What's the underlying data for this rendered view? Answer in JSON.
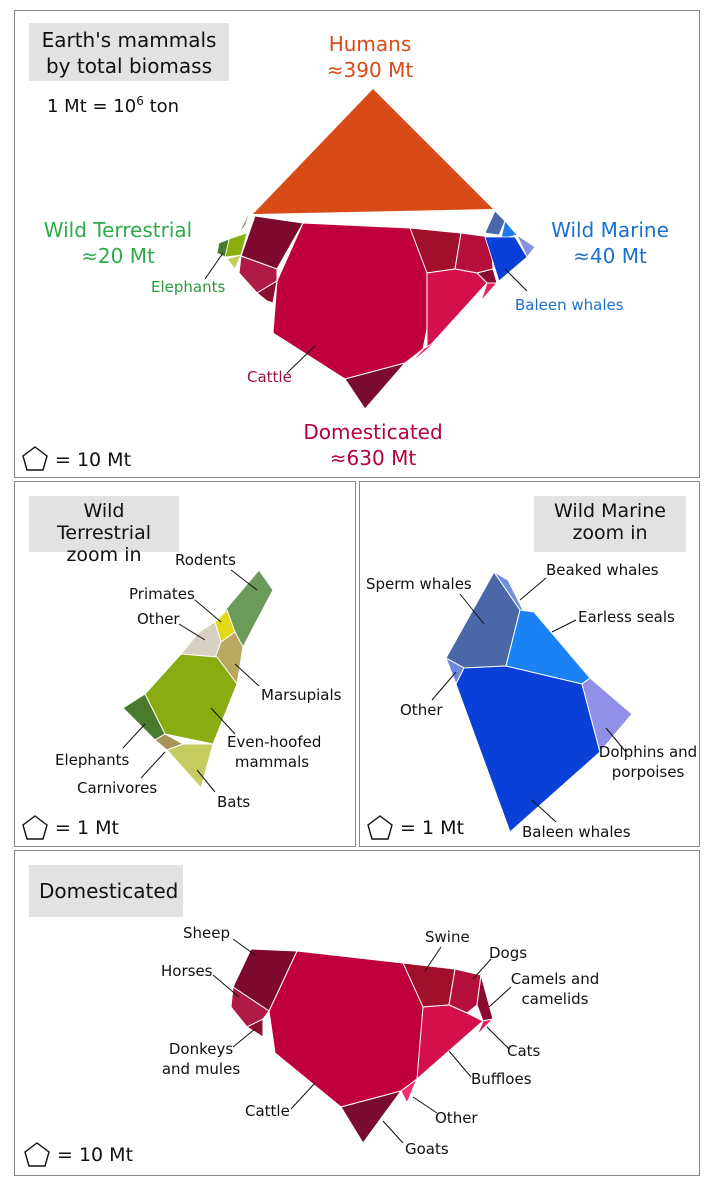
{
  "overview": {
    "title_line1": "Earth's mammals",
    "title_line2": "by total biomass",
    "unit_prefix": "1 Mt = 10",
    "unit_exp": "6",
    "unit_suffix": " ton",
    "humans": {
      "name": "Humans",
      "value": "≈390 Mt"
    },
    "wild_terrestrial": {
      "name": "Wild Terrestrial",
      "value": "≈20 Mt"
    },
    "wild_marine": {
      "name": "Wild Marine",
      "value": "≈40 Mt"
    },
    "domesticated": {
      "name": "Domesticated",
      "value": "≈630 Mt"
    },
    "label_elephants": "Elephants",
    "label_baleen": "Baleen whales",
    "label_cattle": "Cattle",
    "legend": "= 10 Mt"
  },
  "terrestrial_zoom": {
    "title_line1": "Wild Terrestrial",
    "title_line2": "zoom in",
    "labels": {
      "rodents": "Rodents",
      "primates": "Primates",
      "other": "Other",
      "marsupials": "Marsupials",
      "even_hoofed_1": "Even-hoofed",
      "even_hoofed_2": "mammals",
      "elephants": "Elephants",
      "carnivores": "Carnivores",
      "bats": "Bats"
    },
    "legend": "= 1 Mt"
  },
  "marine_zoom": {
    "title_line1": "Wild Marine",
    "title_line2": "zoom in",
    "labels": {
      "sperm": "Sperm whales",
      "beaked": "Beaked whales",
      "earless": "Earless seals",
      "other": "Other",
      "dolphins_1": "Dolphins and",
      "dolphins_2": "porpoises",
      "baleen": "Baleen whales"
    },
    "legend": "= 1 Mt"
  },
  "domesticated_zoom": {
    "title": "Domesticated",
    "labels": {
      "sheep": "Sheep",
      "horses": "Horses",
      "donkeys_1": "Donkeys",
      "donkeys_2": "and mules",
      "cattle": "Cattle",
      "swine": "Swine",
      "dogs": "Dogs",
      "camels_1": "Camels and",
      "camels_2": "camelids",
      "cats": "Cats",
      "buffloes": "Buffloes",
      "other": "Other",
      "goats": "Goats"
    },
    "legend": "= 10 Mt"
  },
  "colors": {
    "humans": "#d84b16",
    "domesticated": "#c0003c",
    "wild_terrestrial": "#2eaa4a",
    "wild_marine": "#1a6fd0"
  }
}
